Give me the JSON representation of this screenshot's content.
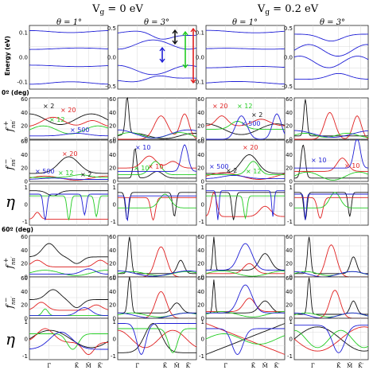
{
  "header": {
    "vg0": "V",
    "vg0_sub": "g",
    "vg0_rest": " = 0 eV",
    "vg2": "V",
    "vg2_sub": "g",
    "vg2_rest": " = 0.2 eV",
    "theta1": "θ = 1°",
    "theta3": "θ = 3°"
  },
  "row_labels": {
    "energy": "Energy (eV)",
    "section0": "0º (deg)",
    "section60": "60º (deg)",
    "fplus": "f",
    "fplus_sup": "+",
    "fplus_sub": "nn′",
    "fminus": "f",
    "fminus_sup": "−",
    "fminus_sub": "nn′",
    "eta": "η"
  },
  "ticks": {
    "energy_col1": [
      "0.1",
      "0.0",
      "-0.1"
    ],
    "energy_col2": [
      "0.5",
      "0.0",
      "-0.5"
    ],
    "energy_col3": [
      "0.1",
      "0.0",
      "-0.1"
    ],
    "energy_col4": [
      "0.5",
      "0.0",
      "-0.5"
    ],
    "f_ticks": [
      "60",
      "40",
      "20",
      "0"
    ],
    "eta_ticks": [
      "1",
      "0",
      "-1"
    ],
    "x_ticks": [
      "Γ̄",
      "K̄",
      "M̄",
      "K̄′"
    ]
  },
  "annotations": {
    "c1_fp": [
      "× 2",
      "× 20",
      "× 12",
      "× 500"
    ],
    "c3_fp": [
      "× 20",
      "× 12",
      "× 2",
      "× 500"
    ],
    "c1_fm": [
      "× 20",
      "× 500",
      "× 12",
      "× 2"
    ],
    "c2_fm": [
      "× 10",
      "× 10",
      "× 10"
    ],
    "c3_fm": [
      "× 20",
      "× 500",
      "× 2",
      "× 12"
    ],
    "c4_fm": [
      "× 10",
      "× 10"
    ]
  },
  "colors": {
    "blue": "#1f1fd6",
    "red": "#e02020",
    "green": "#22cc22",
    "black": "#111111",
    "orange": "#e06000",
    "grid": "#d8d8d8"
  }
}
